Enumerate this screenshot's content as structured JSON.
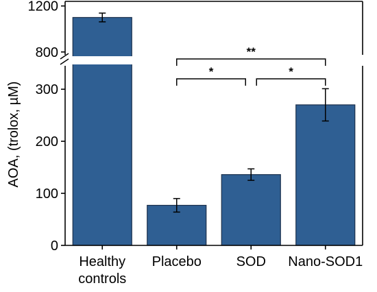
{
  "chart_data": {
    "type": "bar",
    "ylabel": "AOA, (trolox, µM)",
    "categories": [
      [
        "Healthy",
        "controls"
      ],
      [
        "Placebo"
      ],
      [
        "SOD"
      ],
      [
        "Nano-SOD1"
      ]
    ],
    "values": [
      1100,
      77,
      136,
      270
    ],
    "errors": [
      38,
      13,
      11,
      31
    ],
    "bar_color": "#2f5f93",
    "y_axis_broken": true,
    "ylim_lower": [
      0,
      345
    ],
    "ylim_upper": [
      775,
      1240
    ],
    "yticks_lower": [
      0,
      100,
      200,
      300
    ],
    "yticks_upper": [
      800,
      1200
    ],
    "significance": [
      {
        "from": 1,
        "to": 3,
        "label": "**"
      },
      {
        "from": 1,
        "to": 2,
        "label": "*"
      },
      {
        "from": 2,
        "to": 3,
        "label": "*"
      }
    ]
  }
}
